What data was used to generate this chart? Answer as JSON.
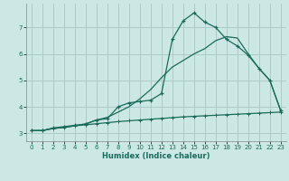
{
  "xlabel": "Humidex (Indice chaleur)",
  "bg_color": "#cce8e4",
  "grid_color": "#aaccc8",
  "line_color": "#1a6b5a",
  "xlim": [
    -0.5,
    23.5
  ],
  "ylim": [
    2.7,
    7.9
  ],
  "xticks": [
    0,
    1,
    2,
    3,
    4,
    5,
    6,
    7,
    8,
    9,
    10,
    11,
    12,
    13,
    14,
    15,
    16,
    17,
    18,
    19,
    20,
    21,
    22,
    23
  ],
  "yticks": [
    3,
    4,
    5,
    6,
    7
  ],
  "line1_x": [
    0,
    1,
    2,
    3,
    4,
    5,
    6,
    7,
    8,
    9,
    10,
    11,
    12,
    13,
    14,
    15,
    16,
    17,
    18,
    19,
    20,
    21,
    22,
    23
  ],
  "line1_y": [
    3.1,
    3.1,
    3.2,
    3.25,
    3.3,
    3.35,
    3.5,
    3.55,
    4.0,
    4.15,
    4.2,
    4.25,
    4.5,
    6.55,
    7.25,
    7.55,
    7.2,
    7.0,
    6.55,
    6.3,
    5.95,
    5.45,
    5.0,
    3.85
  ],
  "line2_x": [
    0,
    1,
    2,
    3,
    4,
    5,
    6,
    7,
    8,
    9,
    10,
    11,
    12,
    13,
    14,
    15,
    16,
    17,
    18,
    19,
    20,
    21,
    22,
    23
  ],
  "line2_y": [
    3.1,
    3.1,
    3.18,
    3.22,
    3.28,
    3.32,
    3.36,
    3.4,
    3.44,
    3.47,
    3.5,
    3.53,
    3.56,
    3.59,
    3.62,
    3.64,
    3.66,
    3.68,
    3.7,
    3.72,
    3.74,
    3.76,
    3.78,
    3.8
  ],
  "line3_x": [
    0,
    1,
    2,
    3,
    4,
    5,
    6,
    7,
    8,
    9,
    10,
    11,
    12,
    13,
    14,
    15,
    16,
    17,
    18,
    19,
    20,
    21,
    22,
    23
  ],
  "line3_y": [
    3.1,
    3.1,
    3.18,
    3.22,
    3.28,
    3.35,
    3.5,
    3.6,
    3.8,
    4.0,
    4.3,
    4.65,
    5.1,
    5.5,
    5.75,
    6.0,
    6.2,
    6.5,
    6.65,
    6.6,
    6.0,
    5.45,
    5.0,
    3.85
  ]
}
